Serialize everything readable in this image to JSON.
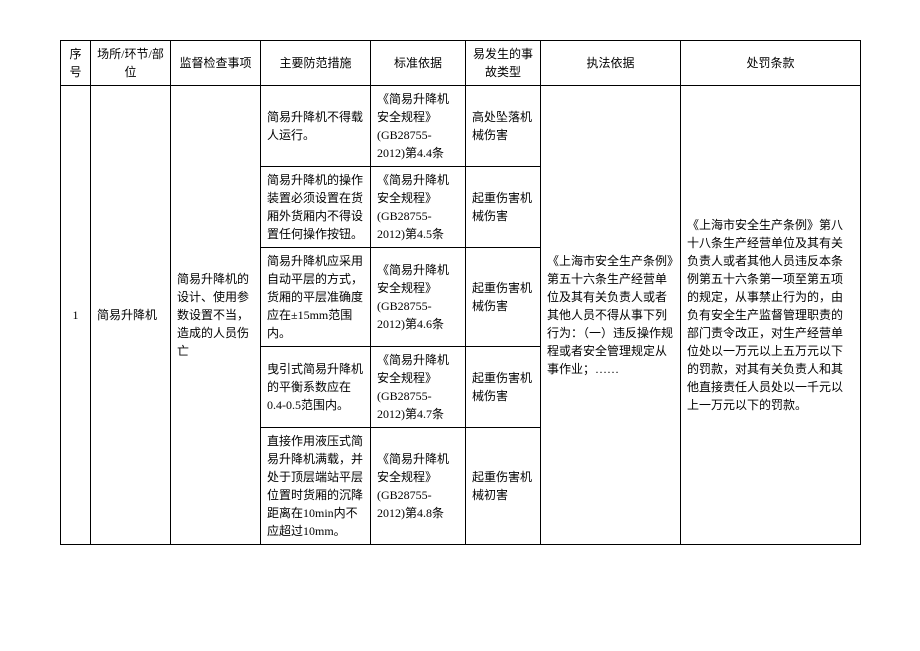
{
  "headers": {
    "seq": "序号",
    "area": "场所/环节/部位",
    "inspection": "监督检查事项",
    "measure": "主要防范措施",
    "basis": "标准依据",
    "accident": "易发生的事故类型",
    "law": "执法依据",
    "penalty": "处罚条款"
  },
  "row": {
    "seq": "1",
    "area": "简易升降机",
    "inspection": "简易升降机的设计、使用参数设置不当，造成的人员伤亡",
    "law": "《上海市安全生产条例》第五十六条生产经营单位及其有关负责人或者其他人员不得从事下列行为：（一）违反操作规程或者安全管理规定从事作业；……",
    "penalty": "《上海市安全生产条例》第八十八条生产经营单位及其有关负责人或者其他人员违反本条例第五十六条第一项至第五项的规定，从事禁止行为的，由负有安全生产监督管理职责的部门责令改正，对生产经营单位处以一万元以上五万元以下的罚款，对其有关负责人和其他直接责任人员处以一千元以上一万元以下的罚款。",
    "sub": [
      {
        "measure": "简易升降机不得载人运行。",
        "basis": "《简易升降机安全规程》(GB28755-2012)第4.4条",
        "accident": "高处坠落机械伤害"
      },
      {
        "measure": "简易升降机的操作装置必须设置在货厢外货厢内不得设置任何操作按钮。",
        "basis": "《简易升降机安全规程》(GB28755-2012)第4.5条",
        "accident": "起重伤害机械伤害"
      },
      {
        "measure": "简易升降机应采用自动平层的方式，货厢的平层准确度应在±15mm范围内。",
        "basis": "《简易升降机安全规程》(GB28755-2012)第4.6条",
        "accident": "起重伤害机械伤害"
      },
      {
        "measure": "曳引式简易升降机的平衡系数应在0.4-0.5范围内。",
        "basis": "《简易升降机安全规程》(GB28755-2012)第4.7条",
        "accident": "起重伤害机械伤害"
      },
      {
        "measure": "直接作用液压式简易升降机满载，并处于顶层端站平层位置时货厢的沉降距离在10min内不应超过10mm。",
        "basis": "《简易升降机安全规程》(GB28755-2012)第4.8条",
        "accident": "起重伤害机械初害"
      }
    ]
  }
}
